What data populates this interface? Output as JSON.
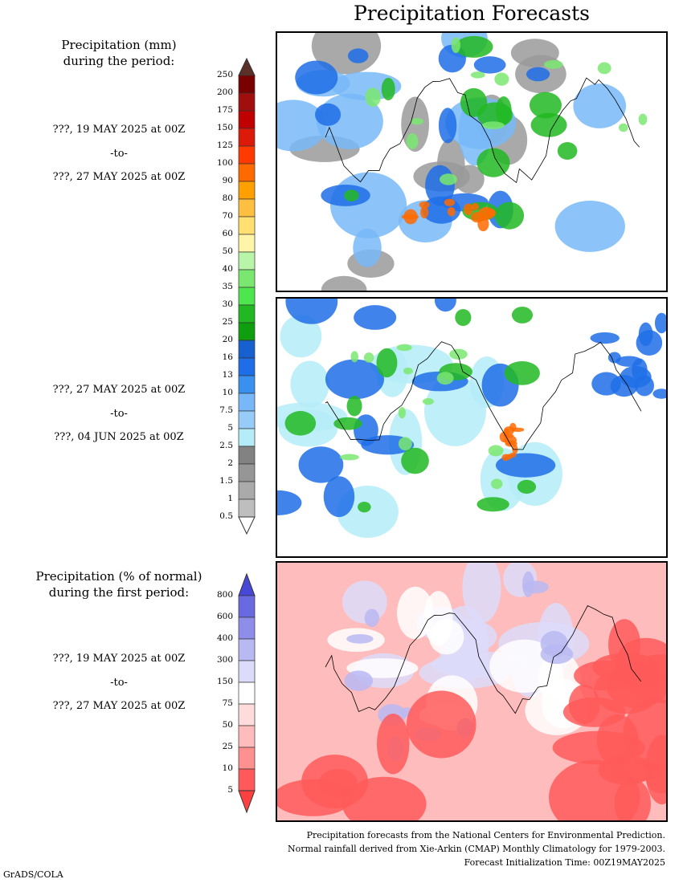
{
  "title": "Precipitation Forecasts",
  "panels": [
    {
      "heading": [
        "Precipitation (mm)",
        "during the period:"
      ],
      "from": "???, 19 MAY 2025 at 00Z",
      "sep": "-to-",
      "to": "???, 27 MAY 2025 at 00Z"
    },
    {
      "from": "???, 27 MAY 2025 at 00Z",
      "sep": "-to-",
      "to": "???, 04 JUN 2025 at 00Z"
    },
    {
      "heading": [
        "Precipitation (% of normal)",
        "during the first period:"
      ],
      "from": "???, 19 MAY 2025 at 00Z",
      "sep": "-to-",
      "to": "???, 27 MAY 2025 at 00Z"
    }
  ],
  "colorbar_mm": {
    "labels": [
      "250",
      "200",
      "175",
      "150",
      "125",
      "100",
      "90",
      "80",
      "70",
      "60",
      "50",
      "40",
      "35",
      "30",
      "25",
      "20",
      "16",
      "13",
      "10",
      "7.5",
      "5",
      "2.5",
      "2",
      "1.5",
      "1",
      "0.5"
    ],
    "colors": [
      "#7a0000",
      "#a00e0e",
      "#c00000",
      "#dc1a0a",
      "#ff3a00",
      "#ff6a00",
      "#ffa000",
      "#ffbf40",
      "#ffe070",
      "#fff5a8",
      "#b8f5a8",
      "#7ae870",
      "#4ee64e",
      "#22b822",
      "#0e9e0e",
      "#1660d0",
      "#1e6ee8",
      "#3a90ee",
      "#78b8f8",
      "#98ccf8",
      "#b4ecf8",
      "#828282",
      "#969696",
      "#aaaaaa",
      "#bebebe"
    ],
    "top_arrow": "#5a3028",
    "bottom_arrow": "#ffffff"
  },
  "colorbar_pct": {
    "labels": [
      "800",
      "600",
      "400",
      "300",
      "150",
      "75",
      "50",
      "25",
      "10",
      "5"
    ],
    "colors": [
      "#6a6ae0",
      "#8e8eea",
      "#b8b8f2",
      "#dcdcfa",
      "#ffffff",
      "#ffdcdc",
      "#ffbcbc",
      "#ff9090",
      "#ff5a5a"
    ],
    "top_arrow": "#4848d8",
    "bottom_arrow": "#ff4040"
  },
  "footer": [
    "Precipitation forecasts from the National Centers for Environmental Prediction.",
    "Normal rainfall derived from Xie-Arkin (CMAP) Monthly Climatology for 1979-2003.",
    "Forecast Initialization Time: 00Z19MAY2025"
  ],
  "credit": "GrADS/COLA"
}
